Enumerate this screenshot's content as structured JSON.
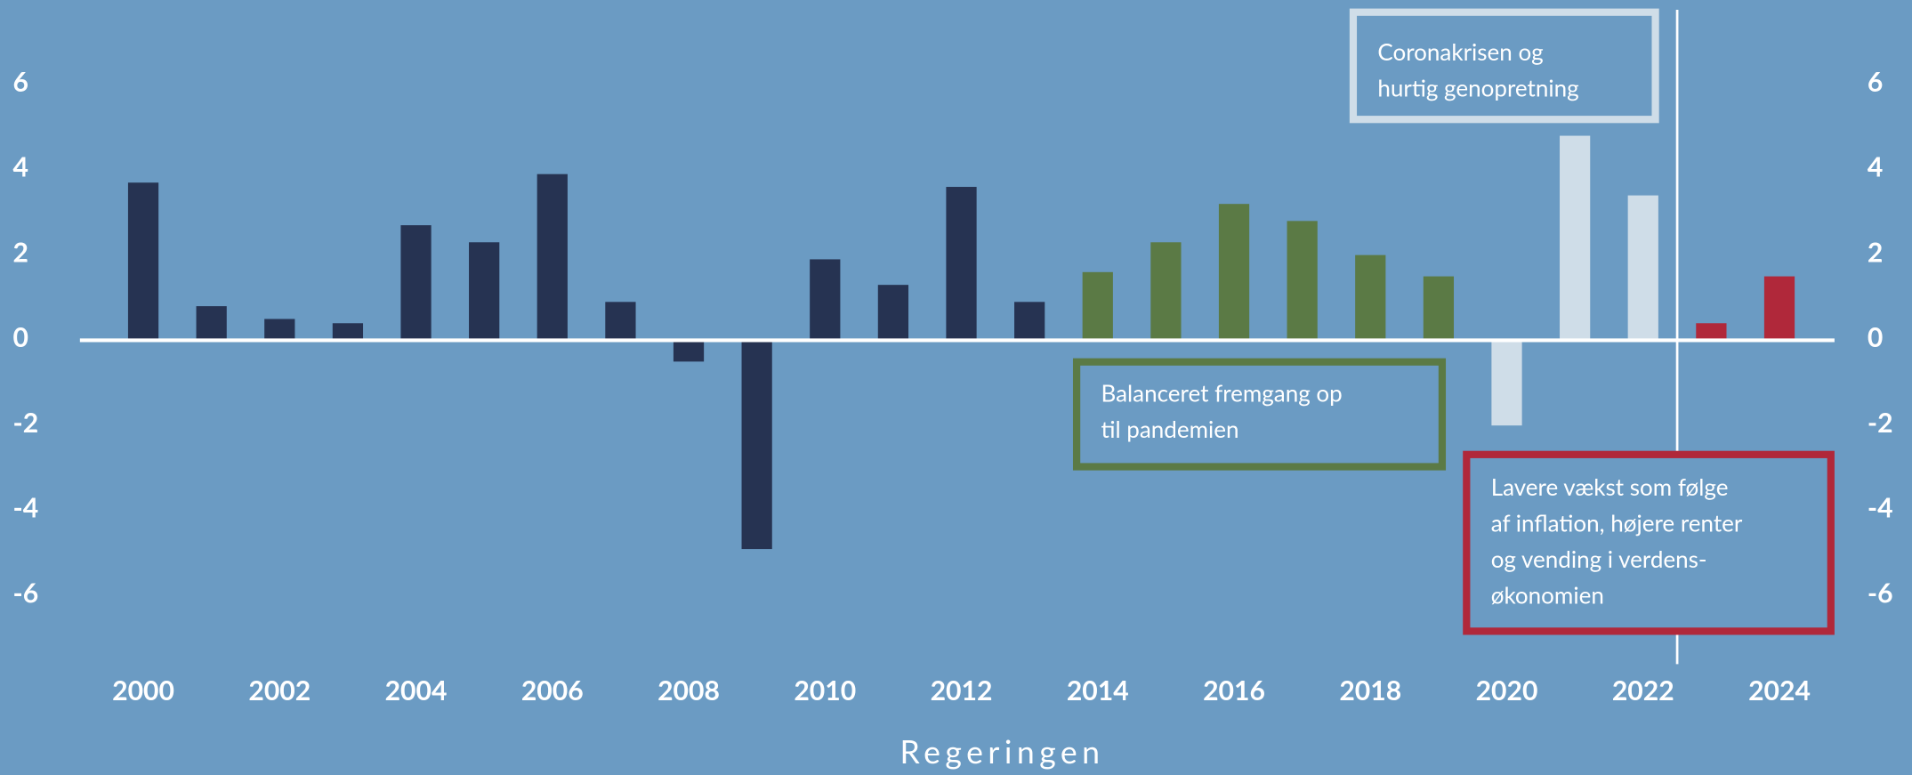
{
  "chart_data": {
    "type": "bar",
    "x_label": "Regeringen",
    "categories": [
      "2000",
      null,
      "2002",
      null,
      "2004",
      null,
      "2006",
      null,
      "2008",
      null,
      "2010",
      null,
      "2012",
      null,
      "2014",
      null,
      "2016",
      null,
      "2018",
      null,
      "2020",
      null,
      "2022",
      null,
      "2024"
    ],
    "values": [
      3.7,
      0.8,
      0.5,
      0.4,
      2.7,
      2.3,
      3.9,
      0.9,
      -0.5,
      -4.9,
      1.9,
      1.3,
      3.6,
      0.9,
      1.6,
      2.3,
      3.2,
      2.8,
      2.0,
      1.5,
      -2.0,
      4.8,
      3.4,
      0.4,
      1.5
    ],
    "colors": [
      "#263352",
      "#263352",
      "#263352",
      "#263352",
      "#263352",
      "#263352",
      "#263352",
      "#263352",
      "#263352",
      "#263352",
      "#263352",
      "#263352",
      "#263352",
      "#263352",
      "#5b7a45",
      "#5b7a45",
      "#5b7a45",
      "#5b7a45",
      "#5b7a45",
      "#5b7a45",
      "#cfdde8",
      "#cfdde8",
      "#cfdde8",
      "#b0283a",
      "#b0283a"
    ],
    "ylim": [
      -7.2,
      7.7
    ],
    "yticks": [
      -6,
      -4,
      -2,
      0,
      2,
      4,
      6
    ],
    "annotations": [
      {
        "lines": [
          "Coronakrisen og",
          "hurtig genopretning"
        ],
        "color": "#cfdde8"
      },
      {
        "lines": [
          "Balanceret fremgang op",
          "til pandemien"
        ],
        "color": "#5b7a45"
      },
      {
        "lines": [
          "Lavere vækst som følge",
          "af inflation, højere renter",
          "og vending i verdens-",
          "økonomien"
        ],
        "color": "#b0283a"
      }
    ]
  }
}
